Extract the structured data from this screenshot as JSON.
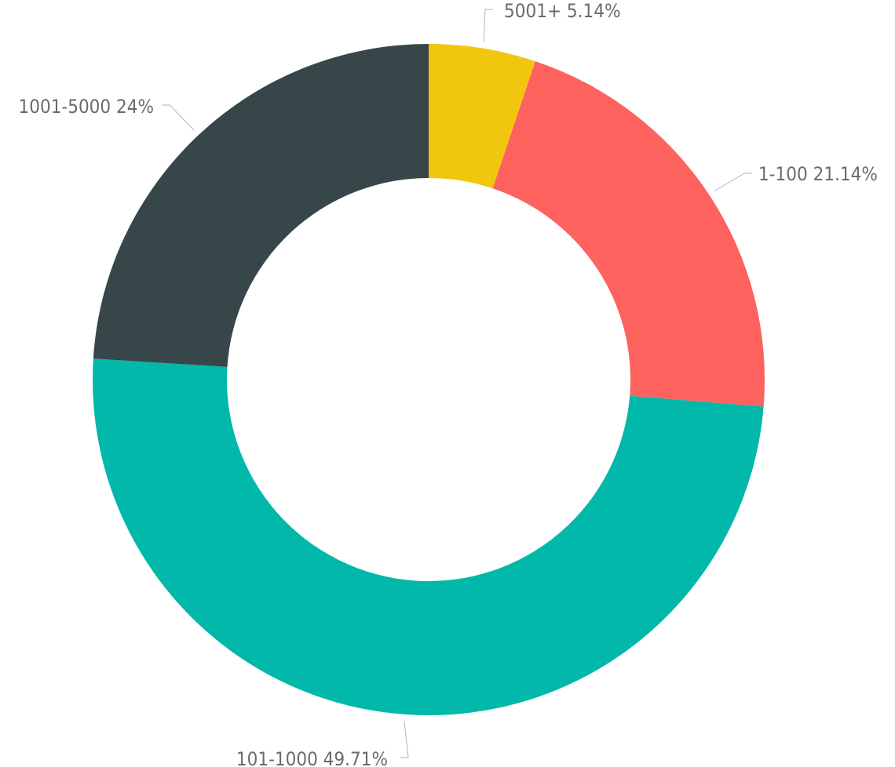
{
  "chart_data": {
    "type": "pie",
    "variant": "donut",
    "title": "",
    "legend": "none",
    "slices": [
      {
        "name": "5001+",
        "value": 5.14,
        "display": "5.14%",
        "color": "#f0c60f",
        "label": "5001+  5.14%"
      },
      {
        "name": "1-100",
        "value": 21.14,
        "display": "21.14%",
        "color": "#fd625e",
        "label": "1-100 21.14%"
      },
      {
        "name": "101-1000",
        "value": 49.71,
        "display": "49.71%",
        "color": "#01b8aa",
        "label": "101-1000 49.71%"
      },
      {
        "name": "1001-5000",
        "value": 24.0,
        "display": "24%",
        "color": "#374649",
        "label": "1001-5000 24%"
      }
    ]
  }
}
